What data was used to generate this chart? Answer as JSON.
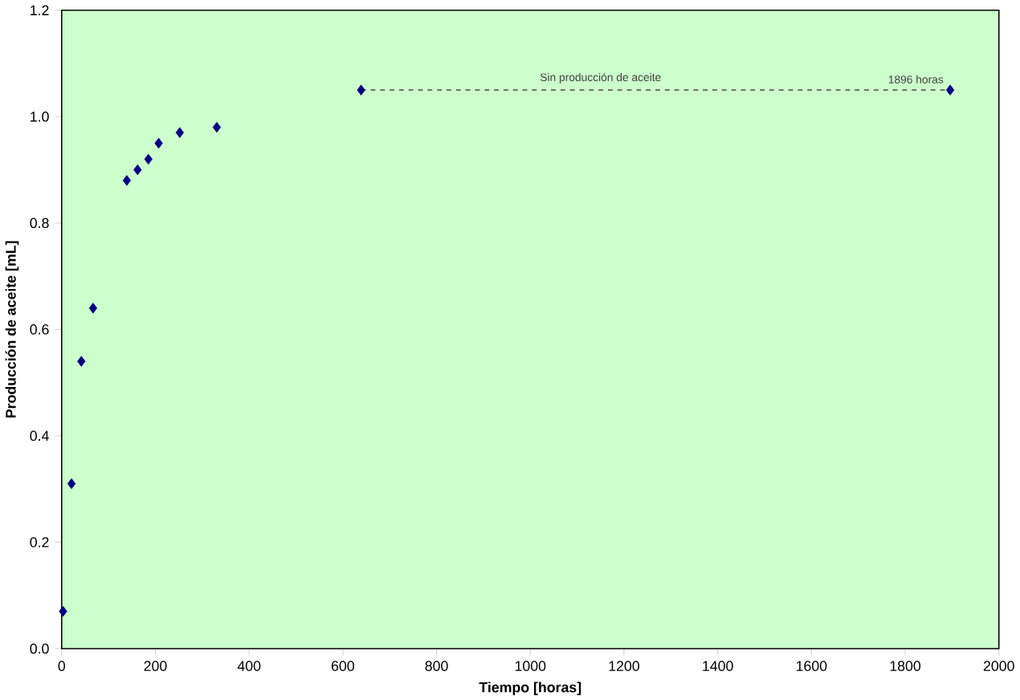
{
  "chart_data": {
    "type": "scatter",
    "xlabel": "Tiempo [horas]",
    "ylabel": "Producción de aceite [mL]",
    "xlim": [
      0,
      2000
    ],
    "ylim": [
      0,
      1.2
    ],
    "xticks": [
      0,
      200,
      400,
      600,
      800,
      1000,
      1200,
      1400,
      1600,
      1800,
      2000
    ],
    "yticks": [
      {
        "value": 0,
        "label": "0.0"
      },
      {
        "value": 0.2,
        "label": "0.2"
      },
      {
        "value": 0.4,
        "label": "0.4"
      },
      {
        "value": 0.6,
        "label": "0.6"
      },
      {
        "value": 0.8,
        "label": "0.8"
      },
      {
        "value": 1.0,
        "label": "1.0"
      },
      {
        "value": 1.2,
        "label": "1.2"
      }
    ],
    "grid": false,
    "marker": "diamond",
    "series": [
      {
        "color": "#000080",
        "x": [
          3,
          21,
          42,
          67,
          139,
          162,
          185,
          207,
          252,
          331,
          639,
          1896
        ],
        "values": [
          0.07,
          0.31,
          0.54,
          0.64,
          0.88,
          0.9,
          0.92,
          0.95,
          0.97,
          0.98,
          1.05,
          1.05
        ]
      },
      {
        "type": "line",
        "color": "#606060",
        "marker": "none",
        "line_style": "dashed",
        "x": [
          639,
          1896
        ],
        "values": [
          1.05,
          1.05
        ]
      }
    ],
    "annotations": [
      {
        "text": "Sin producción de aceite",
        "x": 1150,
        "y": 1.05
      },
      {
        "text": "1896 horas",
        "x": 1896,
        "y": 1.05
      }
    ]
  }
}
